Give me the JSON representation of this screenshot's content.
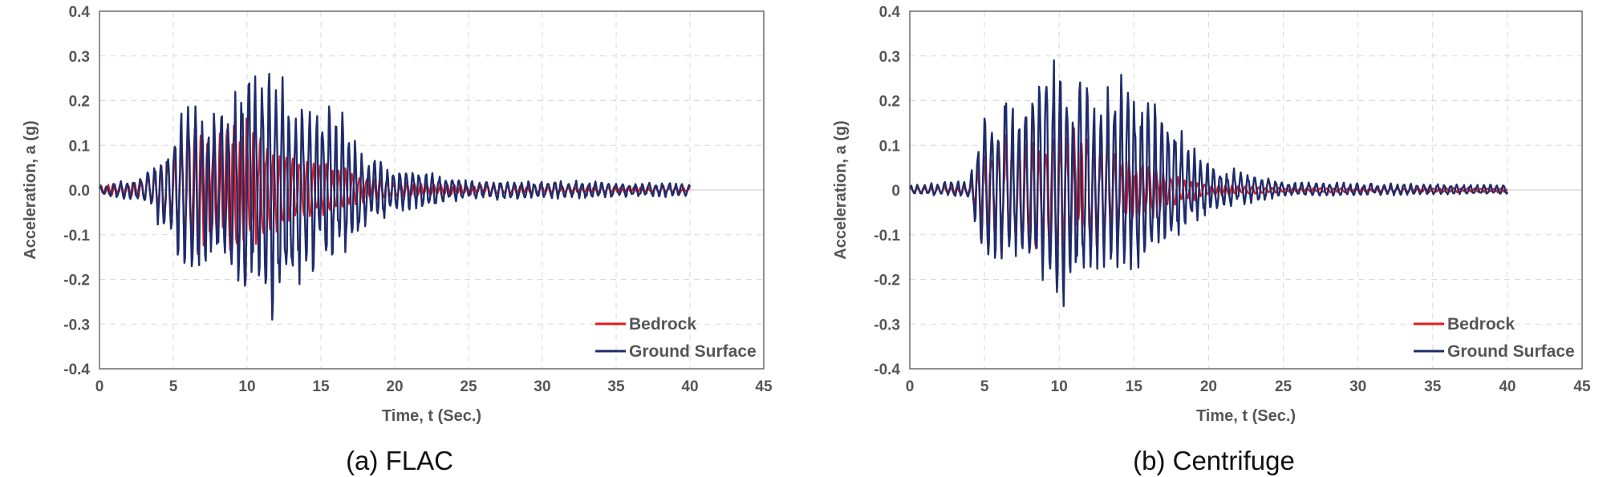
{
  "colors": {
    "bedrock": "#e31a1c",
    "ground": "#1f2c6b",
    "axis": "#555555",
    "grid": "#d9d9d9"
  },
  "chart_data": [
    {
      "type": "line",
      "caption": "(a)  FLAC",
      "xlabel": "Time, t (Sec.)",
      "ylabel": "Acceleration, a (g)",
      "xlim": [
        0,
        45
      ],
      "ylim": [
        -0.4,
        0.4
      ],
      "xticks": [
        "0",
        "5",
        "10",
        "15",
        "20",
        "25",
        "30",
        "35",
        "40",
        "45"
      ],
      "yticks": [
        "0.4",
        "0.3",
        "0.2",
        "0.1",
        "0.0",
        "-0.1",
        "-0.2",
        "-0.3",
        "-0.4"
      ],
      "grid": true,
      "legend_position": "bottom-right",
      "duration": 40,
      "series": [
        {
          "name": "Bedrock",
          "color": "#e31a1c",
          "peak": 0.16,
          "trough": -0.15,
          "envelope": [
            [
              0,
              0.01
            ],
            [
              3,
              0.02
            ],
            [
              5,
              0.07
            ],
            [
              6,
              0.16
            ],
            [
              8,
              0.12
            ],
            [
              10,
              0.14
            ],
            [
              11.5,
              0.1
            ],
            [
              14,
              0.07
            ],
            [
              16,
              0.05
            ],
            [
              18,
              0.03
            ],
            [
              20,
              0.015
            ],
            [
              25,
              0.01
            ],
            [
              40,
              0.005
            ]
          ]
        },
        {
          "name": "Ground Surface",
          "color": "#1f2c6b",
          "peak": 0.26,
          "trough": -0.29,
          "envelope": [
            [
              0,
              0.01
            ],
            [
              3,
              0.03
            ],
            [
              5,
              0.12
            ],
            [
              6,
              0.21
            ],
            [
              8,
              0.17
            ],
            [
              10,
              0.26
            ],
            [
              11.5,
              0.28
            ],
            [
              14,
              0.2
            ],
            [
              16,
              0.18
            ],
            [
              18,
              0.08
            ],
            [
              20,
              0.05
            ],
            [
              25,
              0.02
            ],
            [
              30,
              0.02
            ],
            [
              40,
              0.015
            ]
          ]
        }
      ]
    },
    {
      "type": "line",
      "caption": "(b)  Centrifuge",
      "xlabel": "Time, t (Sec.)",
      "ylabel": "Acceleration, a (g)",
      "xlim": [
        0,
        45
      ],
      "ylim": [
        -0.4,
        0.4
      ],
      "xticks": [
        "0",
        "5",
        "10",
        "15",
        "20",
        "25",
        "30",
        "35",
        "40",
        "45"
      ],
      "yticks": [
        "0.4",
        "0.3",
        "0.2",
        "0.1",
        "0",
        "-0.1",
        "-0.2",
        "-0.3",
        "-0.4"
      ],
      "grid": true,
      "legend_position": "bottom-right",
      "duration": 40,
      "series": [
        {
          "name": "Bedrock",
          "color": "#e31a1c",
          "peak": 0.15,
          "trough": -0.15,
          "envelope": [
            [
              0,
              0.005
            ],
            [
              4,
              0.01
            ],
            [
              5,
              0.1
            ],
            [
              6,
              0.14
            ],
            [
              8,
              0.12
            ],
            [
              10,
              0.15
            ],
            [
              12,
              0.14
            ],
            [
              14,
              0.08
            ],
            [
              16,
              0.06
            ],
            [
              18,
              0.03
            ],
            [
              20,
              0.015
            ],
            [
              25,
              0.005
            ],
            [
              40,
              0.005
            ]
          ]
        },
        {
          "name": "Ground Surface",
          "color": "#1f2c6b",
          "peak": 0.29,
          "trough": -0.26,
          "envelope": [
            [
              0,
              0.01
            ],
            [
              4,
              0.02
            ],
            [
              5,
              0.17
            ],
            [
              6,
              0.18
            ],
            [
              8,
              0.19
            ],
            [
              10,
              0.29
            ],
            [
              11,
              0.22
            ],
            [
              13,
              0.21
            ],
            [
              15,
              0.22
            ],
            [
              17,
              0.16
            ],
            [
              19,
              0.08
            ],
            [
              21,
              0.04
            ],
            [
              23,
              0.03
            ],
            [
              25,
              0.015
            ],
            [
              40,
              0.01
            ]
          ]
        }
      ]
    }
  ]
}
